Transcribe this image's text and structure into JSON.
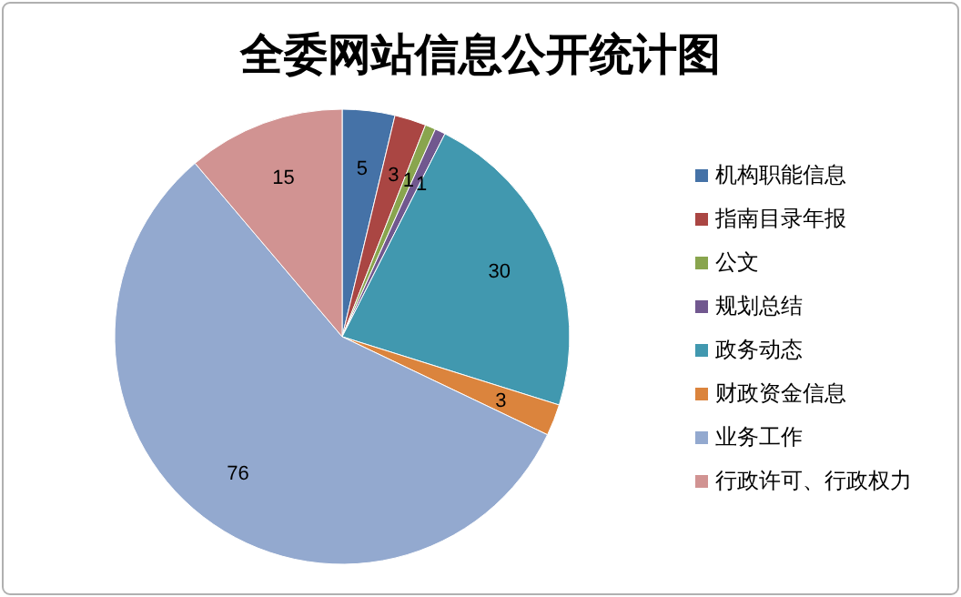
{
  "chart_data": {
    "type": "pie",
    "title": "全委网站信息公开统计图",
    "categories": [
      "机构职能信息",
      "指南目录年报",
      "公文",
      "规划总结",
      "政务动态",
      "财政资金信息",
      "业务工作",
      "行政许可、行政权力"
    ],
    "values": [
      5,
      3,
      1,
      1,
      30,
      3,
      76,
      15
    ],
    "colors": [
      "#4572a7",
      "#aa4643",
      "#89a54e",
      "#71588f",
      "#4198af",
      "#db843d",
      "#93a9cf",
      "#d19392"
    ],
    "data_labels": true,
    "legend": "right"
  }
}
